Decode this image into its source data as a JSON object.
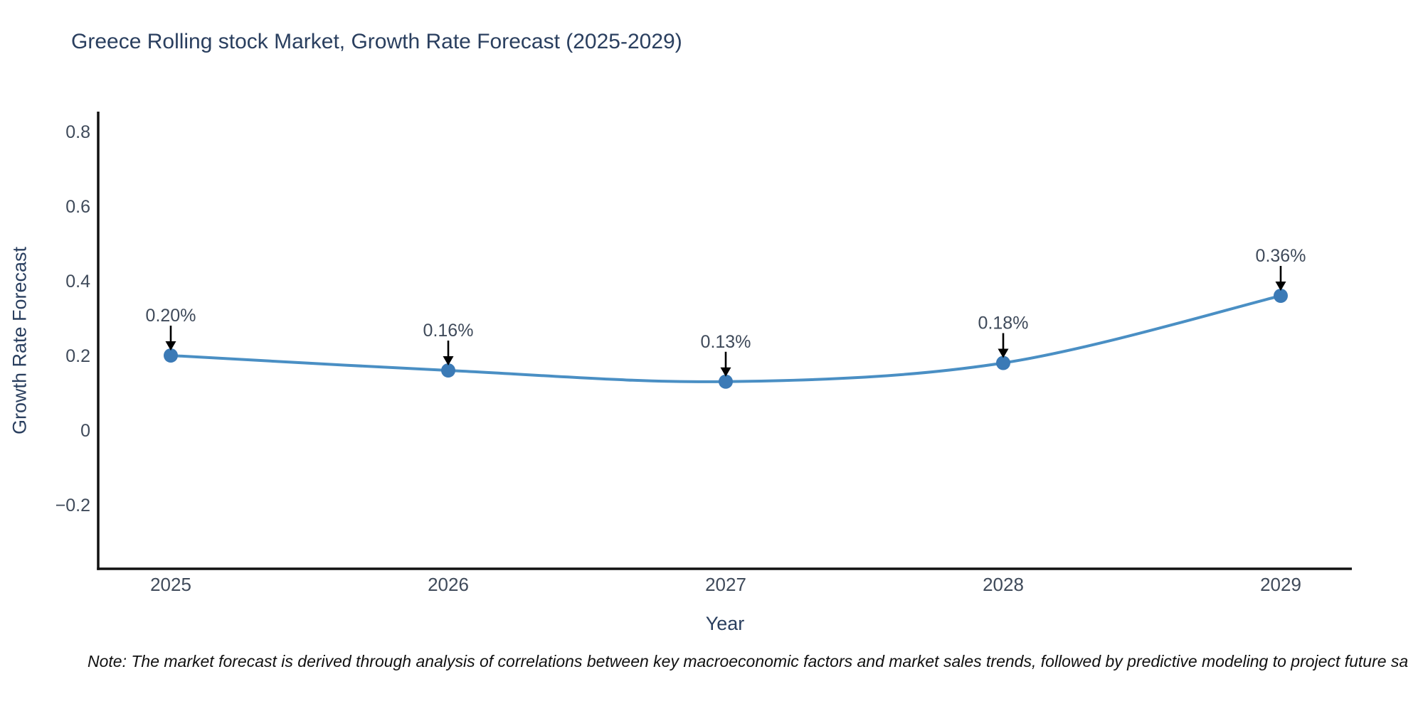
{
  "title": "Greece Rolling stock Market, Growth Rate Forecast (2025-2029)",
  "note": "Note: The market forecast is derived through analysis of correlations between key macroeconomic factors and market sales trends, followed by predictive modeling to project future sa",
  "colors": {
    "title_text": "#2a3f5f",
    "tick_text": "#3f4a5a",
    "axis_spine": "#111111",
    "line": "#4a8fc4",
    "marker": "#3b7ab6",
    "annotation_text": "#3f4a5a",
    "annotation_arrow": "#000000",
    "background": "#ffffff"
  },
  "chart_data": {
    "type": "line",
    "title": "Greece Rolling stock Market, Growth Rate Forecast (2025-2029)",
    "xlabel": "Year",
    "ylabel": "Growth Rate Forecast",
    "x": [
      "2025",
      "2026",
      "2027",
      "2028",
      "2029"
    ],
    "values": [
      0.2,
      0.16,
      0.13,
      0.18,
      0.36
    ],
    "point_labels": [
      "0.20%",
      "0.16%",
      "0.13%",
      "0.18%",
      "0.36%"
    ],
    "yticks": [
      {
        "v": 0.8,
        "label": "0.8"
      },
      {
        "v": 0.6,
        "label": "0.6"
      },
      {
        "v": 0.4,
        "label": "0.4"
      },
      {
        "v": 0.2,
        "label": "0.2"
      },
      {
        "v": 0.0,
        "label": "0"
      },
      {
        "v": -0.2,
        "label": "−0.2"
      }
    ],
    "ylim": [
      -0.37,
      0.85
    ],
    "grid": false,
    "legend": false,
    "line_smoothing": "spline",
    "annotation_style": "label-above-with-down-arrow"
  }
}
